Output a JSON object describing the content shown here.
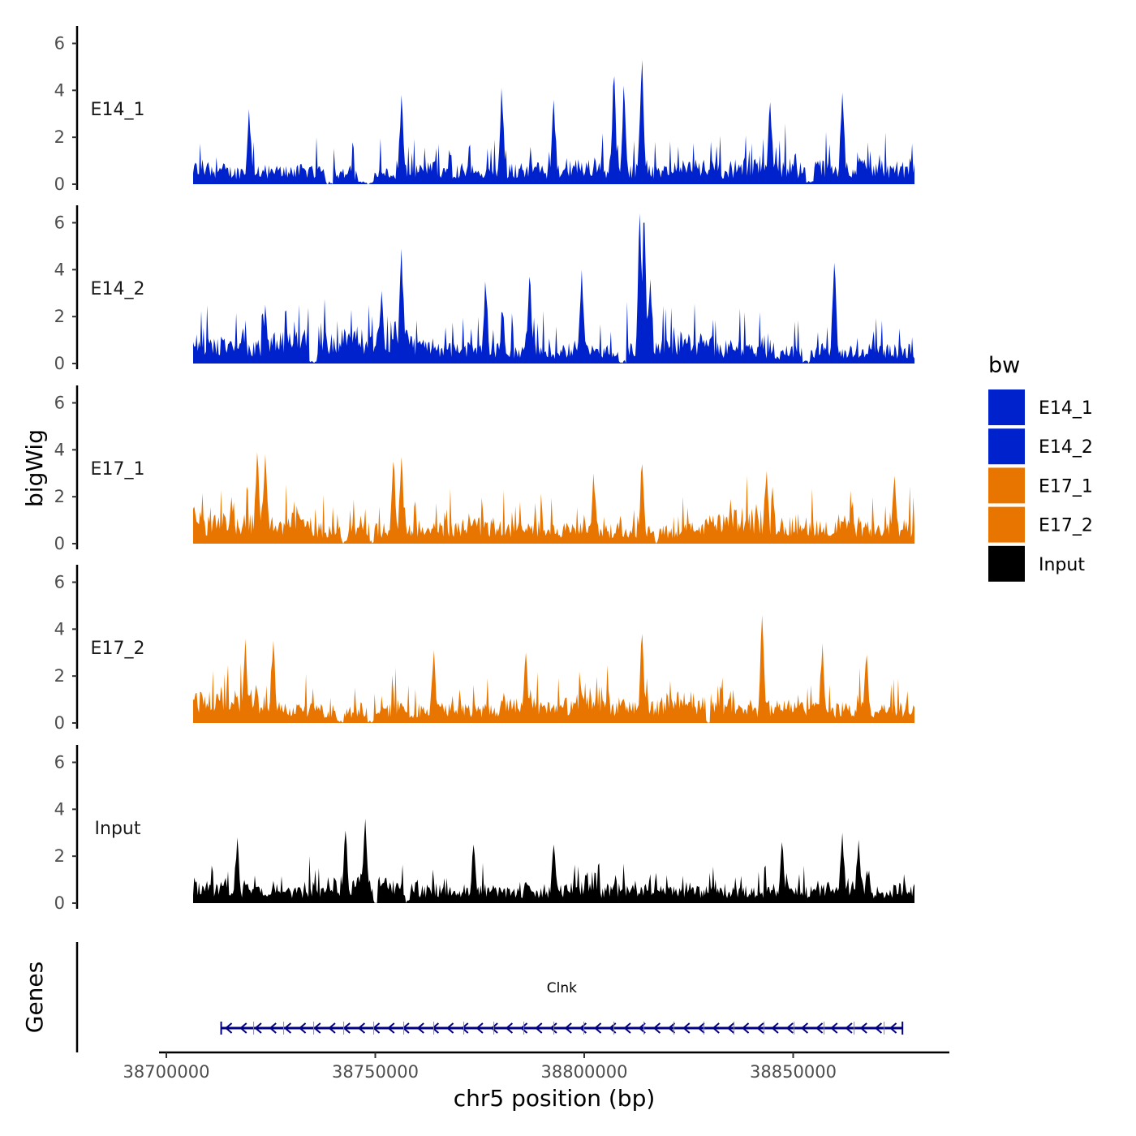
{
  "chart_data": {
    "type": "area",
    "title": "",
    "xlabel": "chr5 position (bp)",
    "ylabel": "bigWig",
    "genes_label": "Genes",
    "chromosome": "chr5",
    "x_range": [
      38700000,
      38880000
    ],
    "xlim": [
      38696500,
      38890000
    ],
    "x_ticks": [
      38700000,
      38750000,
      38800000,
      38850000
    ],
    "x_tick_labels": [
      "38700000",
      "38750000",
      "38800000",
      "38850000"
    ],
    "ylim": [
      0,
      6.6
    ],
    "y_ticks": [
      0,
      2,
      4,
      6
    ],
    "y_tick_labels": [
      "0",
      "2",
      "4",
      "6"
    ],
    "legend": {
      "title": "bw",
      "position": "right",
      "entries": [
        {
          "label": "E14_1",
          "color": "#0022CC"
        },
        {
          "label": "E14_2",
          "color": "#0022CC"
        },
        {
          "label": "E17_1",
          "color": "#E87500"
        },
        {
          "label": "E17_2",
          "color": "#E87500"
        },
        {
          "label": "Input",
          "color": "#000000"
        }
      ]
    },
    "series": [
      {
        "name": "E14_1",
        "color": "#0022CC",
        "baseline": 0.8,
        "amp": 1.6,
        "peaks": [
          [
            38752000,
            3.8
          ],
          [
            38805000,
            4.6
          ],
          [
            38812000,
            5.3
          ],
          [
            38777000,
            4.1
          ],
          [
            38807500,
            4.2
          ],
          [
            38844000,
            3.5
          ],
          [
            38862000,
            3.9
          ],
          [
            38714000,
            3.2
          ],
          [
            38790000,
            3.6
          ]
        ],
        "gaps": [
          [
            38733000,
            38735000
          ],
          [
            38741000,
            38745000
          ],
          [
            38853000,
            38855000
          ]
        ]
      },
      {
        "name": "E14_2",
        "color": "#0022CC",
        "baseline": 0.9,
        "amp": 1.7,
        "peaks": [
          [
            38752000,
            4.9
          ],
          [
            38811500,
            6.4
          ],
          [
            38812500,
            6.0
          ],
          [
            38747000,
            3.1
          ],
          [
            38797000,
            4.0
          ],
          [
            38718000,
            2.5
          ],
          [
            38814000,
            3.6
          ],
          [
            38860000,
            4.3
          ],
          [
            38773000,
            3.5
          ],
          [
            38784000,
            3.7
          ]
        ],
        "gaps": [
          [
            38729000,
            38731000
          ],
          [
            38806000,
            38808000
          ],
          [
            38852000,
            38854000
          ]
        ]
      },
      {
        "name": "E17_1",
        "color": "#E87500",
        "baseline": 1.2,
        "amp": 1.6,
        "peaks": [
          [
            38716000,
            3.9
          ],
          [
            38718000,
            3.8
          ],
          [
            38752000,
            3.7
          ],
          [
            38750000,
            3.5
          ],
          [
            38812000,
            3.4
          ],
          [
            38800000,
            3.0
          ],
          [
            38875000,
            2.9
          ],
          [
            38843000,
            3.1
          ]
        ],
        "gaps": [
          [
            38737000,
            38738500
          ],
          [
            38744000,
            38745000
          ],
          [
            38815000,
            38816000
          ]
        ]
      },
      {
        "name": "E17_2",
        "color": "#E87500",
        "baseline": 1.1,
        "amp": 1.6,
        "peaks": [
          [
            38842000,
            4.6
          ],
          [
            38812000,
            3.8
          ],
          [
            38713000,
            3.6
          ],
          [
            38720000,
            3.5
          ],
          [
            38857000,
            3.4
          ],
          [
            38760000,
            3.1
          ],
          [
            38783000,
            3.0
          ],
          [
            38868000,
            2.9
          ]
        ],
        "gaps": [
          [
            38736000,
            38737500
          ],
          [
            38743500,
            38745000
          ],
          [
            38828000,
            38829000
          ]
        ]
      },
      {
        "name": "Input",
        "color": "#000000",
        "baseline": 1.0,
        "amp": 1.1,
        "peaks": [
          [
            38743000,
            3.6
          ],
          [
            38738000,
            3.1
          ],
          [
            38862000,
            3.0
          ],
          [
            38711000,
            2.8
          ],
          [
            38770000,
            2.5
          ],
          [
            38847000,
            2.6
          ],
          [
            38866000,
            2.7
          ],
          [
            38790000,
            2.5
          ]
        ],
        "gaps": [
          [
            38745000,
            38746000
          ],
          [
            38753000,
            38754000
          ]
        ]
      }
    ],
    "genes": [
      {
        "name": "Clnk",
        "start": 38707000,
        "end": 38877000,
        "strand": "-",
        "color": "#000080"
      }
    ]
  }
}
